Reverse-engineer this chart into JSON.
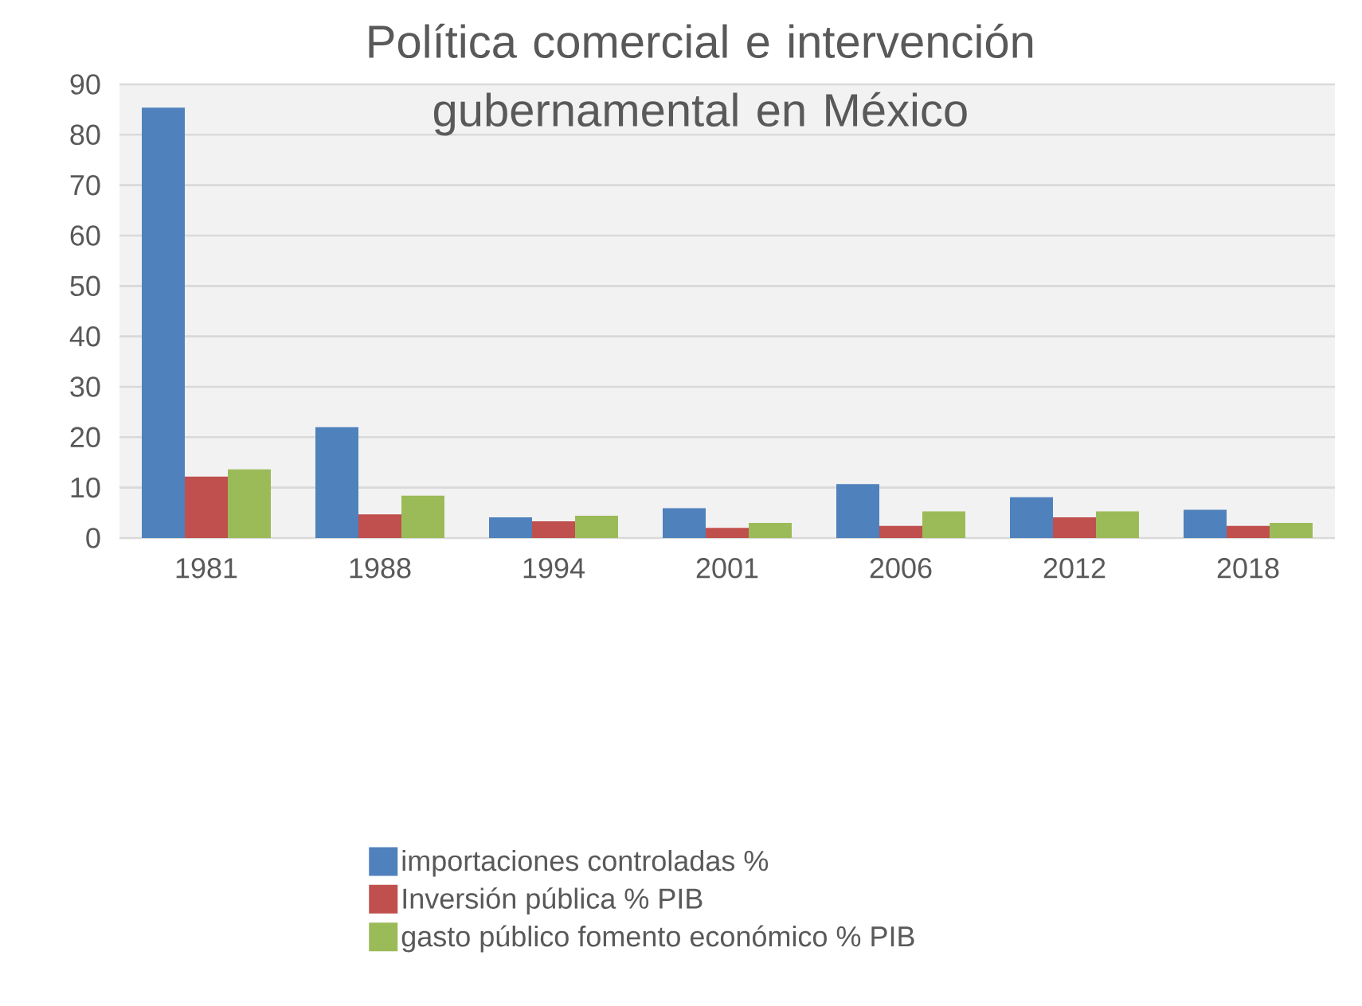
{
  "chart_data": {
    "type": "bar",
    "title": "Política comercial e intervención gubernamental en México",
    "categories": [
      "1981",
      "1988",
      "1994",
      "2001",
      "2006",
      "2012",
      "2018"
    ],
    "series": [
      {
        "name": "importaciones controladas %",
        "color": "#4f81bd",
        "values": [
          85.4,
          22,
          4.1,
          5.9,
          10.7,
          8.1,
          5.6
        ]
      },
      {
        "name": "Inversión pública % PIB",
        "color": "#c0504d",
        "values": [
          12.2,
          4.7,
          3.3,
          2.0,
          2.4,
          4.1,
          2.4
        ]
      },
      {
        "name": "gasto público fomento económico % PIB",
        "color": "#9bbb59",
        "values": [
          13.6,
          8.4,
          4.4,
          3.0,
          5.3,
          5.3,
          3.0
        ]
      }
    ],
    "ylim": [
      0,
      90
    ],
    "yticks": [
      0,
      10,
      20,
      30,
      40,
      50,
      60,
      70,
      80,
      90
    ],
    "grid": "y",
    "legend": "bottom"
  }
}
